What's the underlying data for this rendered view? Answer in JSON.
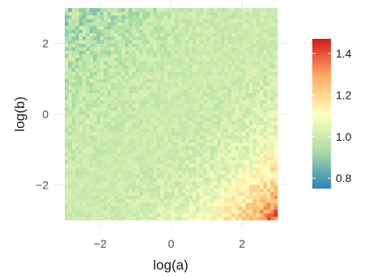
{
  "chart_data": {
    "type": "heatmap",
    "title": "",
    "xlabel": "log(a)",
    "ylabel": "log(b)",
    "xlim": [
      -3,
      3
    ],
    "ylim": [
      -3,
      3
    ],
    "x_ticks": [
      -2,
      0,
      2
    ],
    "y_ticks": [
      -2,
      0,
      2
    ],
    "x_tick_labels": [
      "−2",
      "0",
      "2"
    ],
    "y_tick_labels": [
      "−2",
      "0",
      "2"
    ],
    "grid": true,
    "legend_position": "right",
    "colorbar": {
      "min": 0.75,
      "max": 1.47,
      "ticks": [
        0.8,
        1.0,
        1.2,
        1.4
      ],
      "tick_labels": [
        "0.8",
        "1.0",
        "1.2",
        "1.4"
      ],
      "palette": [
        "#2B83BA",
        "#ABDDA4",
        "#FFFFBF",
        "#FDAE61",
        "#D7191C"
      ]
    },
    "resolution": 60,
    "field_description": "z ≈ 1.0 across most of the grid; lower (~0.92) in the upper-left corner (low a, high b); higher (up to ~1.4) in the lower-right corner (high a, low b).",
    "anchor_values": [
      {
        "x": -3,
        "y": 3,
        "z": 0.92
      },
      {
        "x": 0,
        "y": 0,
        "z": 1.0
      },
      {
        "x": 2,
        "y": -2,
        "z": 1.1
      },
      {
        "x": 3,
        "y": -3,
        "z": 1.35
      }
    ]
  }
}
